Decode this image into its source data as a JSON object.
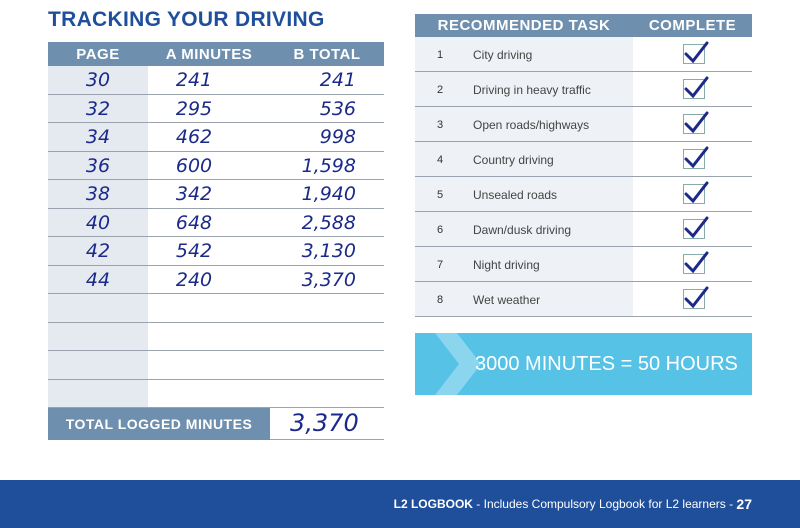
{
  "left": {
    "title": "TRACKING YOUR DRIVING",
    "headers": [
      "PAGE",
      "A MINUTES",
      "B TOTAL"
    ],
    "rows": [
      [
        "30",
        "241",
        "241"
      ],
      [
        "32",
        "295",
        "536"
      ],
      [
        "34",
        "462",
        "998"
      ],
      [
        "36",
        "600",
        "1,598"
      ],
      [
        "38",
        "342",
        "1,940"
      ],
      [
        "40",
        "648",
        "2,588"
      ],
      [
        "42",
        "542",
        "3,130"
      ],
      [
        "44",
        "240",
        "3,370"
      ]
    ],
    "total_label": "TOTAL LOGGED MINUTES",
    "total_value": "3,370"
  },
  "right": {
    "headers": [
      "RECOMMENDED TASK",
      "COMPLETE"
    ],
    "rows": [
      [
        "1",
        "City driving"
      ],
      [
        "2",
        "Driving in heavy traffic"
      ],
      [
        "3",
        "Open roads/highways"
      ],
      [
        "4",
        "Country driving"
      ],
      [
        "5",
        "Unsealed roads"
      ],
      [
        "6",
        "Dawn/dusk driving"
      ],
      [
        "7",
        "Night driving"
      ],
      [
        "8",
        "Wet weather"
      ]
    ]
  },
  "banner": "3000 MINUTES = 50 HOURS",
  "footer": {
    "brand": "L2 LOGBOOK",
    "text": " - Includes Compulsory Logbook for L2 learners - ",
    "page_number": "27"
  }
}
